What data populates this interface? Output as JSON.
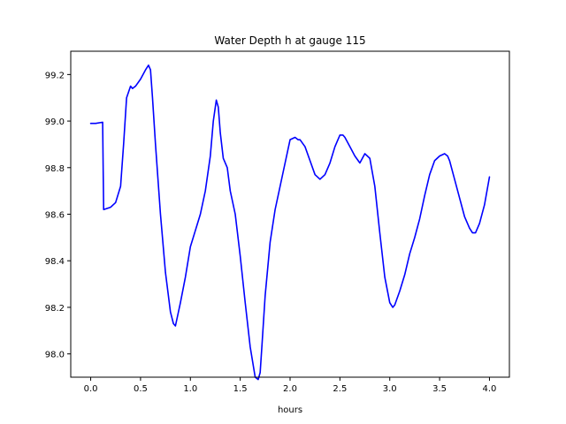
{
  "chart_data": {
    "type": "line",
    "title": "Water Depth h at gauge 115",
    "xlabel": "hours",
    "ylabel": "",
    "xlim": [
      -0.2,
      4.2
    ],
    "ylim": [
      97.9,
      99.3
    ],
    "xticks": [
      0.0,
      0.5,
      1.0,
      1.5,
      2.0,
      2.5,
      3.0,
      3.5,
      4.0
    ],
    "xtick_labels": [
      "0.0",
      "0.5",
      "1.0",
      "1.5",
      "2.0",
      "2.5",
      "3.0",
      "3.5",
      "4.0"
    ],
    "yticks": [
      98.0,
      98.2,
      98.4,
      98.6,
      98.8,
      99.0,
      99.2
    ],
    "ytick_labels": [
      "98.0",
      "98.2",
      "98.4",
      "98.6",
      "98.8",
      "99.0",
      "99.2"
    ],
    "grid": false,
    "series": [
      {
        "color": "#0000ff",
        "x": [
          0.0,
          0.05,
          0.12,
          0.125,
          0.13,
          0.2,
          0.25,
          0.3,
          0.33,
          0.36,
          0.4,
          0.42,
          0.45,
          0.5,
          0.55,
          0.58,
          0.6,
          0.62,
          0.65,
          0.7,
          0.75,
          0.8,
          0.83,
          0.85,
          0.9,
          0.95,
          1.0,
          1.05,
          1.1,
          1.15,
          1.2,
          1.23,
          1.26,
          1.28,
          1.3,
          1.33,
          1.37,
          1.4,
          1.45,
          1.5,
          1.55,
          1.6,
          1.65,
          1.68,
          1.7,
          1.72,
          1.75,
          1.8,
          1.85,
          1.9,
          1.95,
          2.0,
          2.05,
          2.08,
          2.1,
          2.15,
          2.2,
          2.25,
          2.3,
          2.35,
          2.4,
          2.45,
          2.5,
          2.53,
          2.55,
          2.6,
          2.65,
          2.7,
          2.75,
          2.8,
          2.85,
          2.9,
          2.95,
          3.0,
          3.03,
          3.05,
          3.1,
          3.15,
          3.2,
          3.25,
          3.3,
          3.35,
          3.4,
          3.45,
          3.5,
          3.55,
          3.58,
          3.6,
          3.65,
          3.7,
          3.75,
          3.8,
          3.83,
          3.86,
          3.9,
          3.95,
          4.0
        ],
        "y": [
          98.99,
          98.99,
          98.995,
          98.8,
          98.62,
          98.63,
          98.65,
          98.72,
          98.9,
          99.1,
          99.15,
          99.14,
          99.15,
          99.18,
          99.22,
          99.24,
          99.22,
          99.1,
          98.9,
          98.6,
          98.35,
          98.18,
          98.13,
          98.12,
          98.22,
          98.33,
          98.46,
          98.53,
          98.6,
          98.7,
          98.85,
          99.0,
          99.09,
          99.06,
          98.95,
          98.84,
          98.8,
          98.7,
          98.6,
          98.42,
          98.22,
          98.03,
          97.9,
          97.89,
          97.92,
          98.05,
          98.25,
          98.48,
          98.62,
          98.72,
          98.82,
          98.92,
          98.93,
          98.92,
          98.92,
          98.89,
          98.83,
          98.77,
          98.75,
          98.77,
          98.82,
          98.89,
          98.94,
          98.94,
          98.93,
          98.89,
          98.85,
          98.82,
          98.86,
          98.84,
          98.72,
          98.52,
          98.33,
          98.22,
          98.2,
          98.21,
          98.27,
          98.34,
          98.43,
          98.5,
          98.58,
          98.68,
          98.77,
          98.83,
          98.85,
          98.86,
          98.85,
          98.83,
          98.75,
          98.67,
          98.59,
          98.54,
          98.52,
          98.52,
          98.56,
          98.64,
          98.76
        ]
      }
    ]
  }
}
